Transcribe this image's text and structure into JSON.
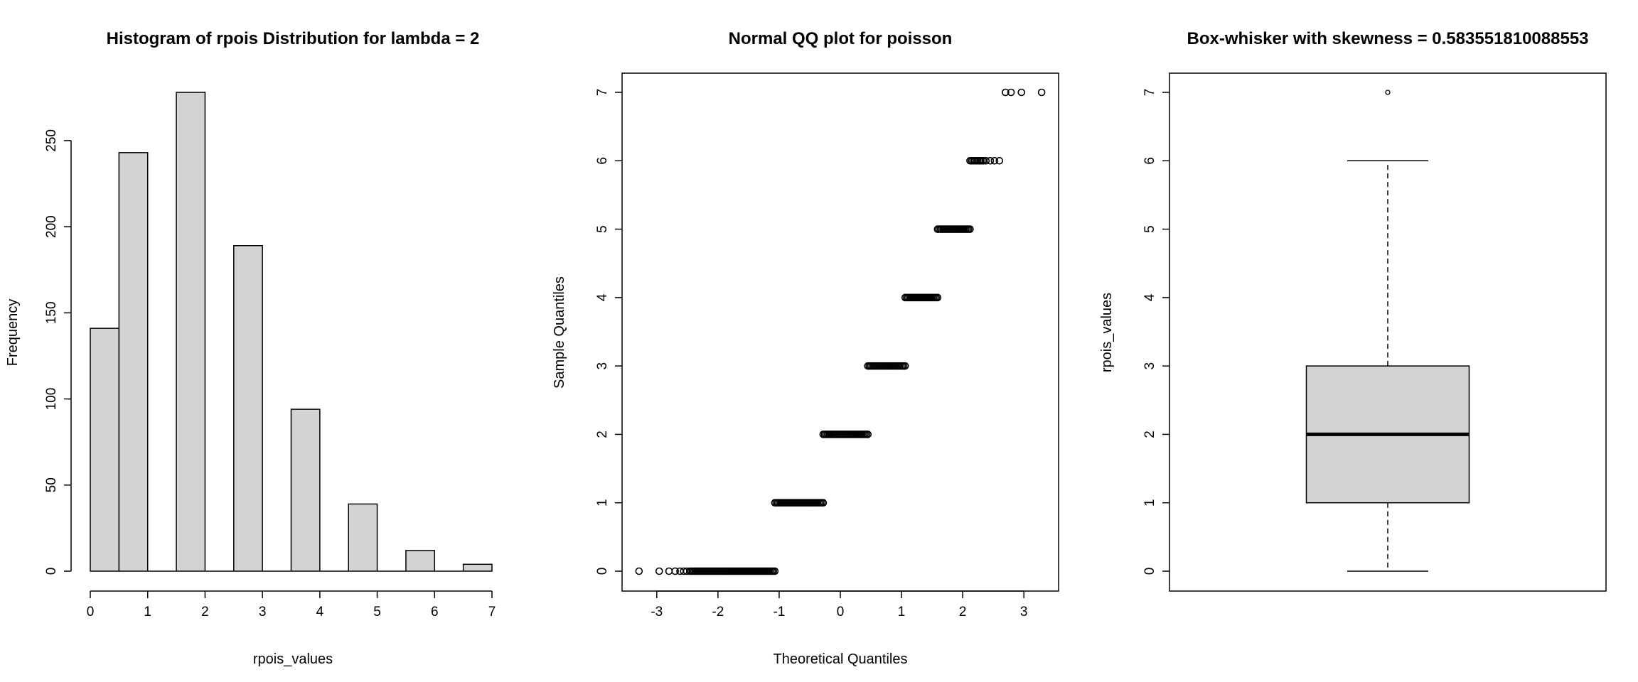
{
  "chart_data": [
    {
      "type": "bar",
      "subtype": "histogram",
      "title": "Histogram of rpois Distribution for lambda = 2",
      "xlabel": "rpois_values",
      "ylabel": "Frequency",
      "bins": [
        {
          "from": 0.0,
          "to": 0.5,
          "count": 141
        },
        {
          "from": 0.5,
          "to": 1.0,
          "count": 243
        },
        {
          "from": 1.0,
          "to": 1.5,
          "count": 0
        },
        {
          "from": 1.5,
          "to": 2.0,
          "count": 278
        },
        {
          "from": 2.0,
          "to": 2.5,
          "count": 0
        },
        {
          "from": 2.5,
          "to": 3.0,
          "count": 189
        },
        {
          "from": 3.0,
          "to": 3.5,
          "count": 0
        },
        {
          "from": 3.5,
          "to": 4.0,
          "count": 94
        },
        {
          "from": 4.0,
          "to": 4.5,
          "count": 0
        },
        {
          "from": 4.5,
          "to": 5.0,
          "count": 39
        },
        {
          "from": 5.0,
          "to": 5.5,
          "count": 0
        },
        {
          "from": 5.5,
          "to": 6.0,
          "count": 12
        },
        {
          "from": 6.0,
          "to": 6.5,
          "count": 0
        },
        {
          "from": 6.5,
          "to": 7.0,
          "count": 4
        }
      ],
      "xlim": [
        0,
        7
      ],
      "ylim": [
        0,
        278
      ],
      "xticks": [
        0,
        1,
        2,
        3,
        4,
        5,
        6,
        7
      ],
      "yticks": [
        0,
        50,
        100,
        150,
        200,
        250
      ],
      "bar_color": "#d3d3d3"
    },
    {
      "type": "scatter",
      "subtype": "qq",
      "title": "Normal QQ plot for poisson",
      "xlabel": "Theoretical Quantiles",
      "ylabel": "Sample Quantiles",
      "xlim": [
        -3.3,
        3.3
      ],
      "ylim": [
        0,
        7
      ],
      "xticks": [
        -3,
        -2,
        -1,
        0,
        1,
        2,
        3
      ],
      "yticks": [
        0,
        1,
        2,
        3,
        4,
        5,
        6,
        7
      ],
      "groups": [
        {
          "value": 0,
          "x_from": -3.29,
          "x_to": -1.07,
          "isolated_x": [
            -3.29,
            -2.96,
            -2.8,
            -2.7,
            -2.62,
            -2.56,
            -2.51
          ]
        },
        {
          "value": 1,
          "x_from": -1.07,
          "x_to": -0.28,
          "isolated_x": []
        },
        {
          "value": 2,
          "x_from": -0.28,
          "x_to": 0.45,
          "isolated_x": []
        },
        {
          "value": 3,
          "x_from": 0.45,
          "x_to": 1.06,
          "isolated_x": []
        },
        {
          "value": 4,
          "x_from": 1.06,
          "x_to": 1.59,
          "isolated_x": []
        },
        {
          "value": 5,
          "x_from": 1.59,
          "x_to": 2.12,
          "isolated_x": []
        },
        {
          "value": 6,
          "x_from": 2.12,
          "x_to": 2.6,
          "isolated_x": [
            2.38,
            2.45,
            2.52,
            2.6
          ]
        },
        {
          "value": 7,
          "x_from": 2.7,
          "x_to": 3.29,
          "isolated_x": [
            2.7,
            2.79,
            2.96,
            3.29
          ]
        }
      ]
    },
    {
      "type": "box",
      "title": "Box-whisker with skewness = 0.583551810088553",
      "ylabel": "rpois_values",
      "ylim": [
        0,
        7
      ],
      "yticks": [
        0,
        1,
        2,
        3,
        4,
        5,
        6,
        7
      ],
      "min": 0,
      "q1": 1,
      "median": 2,
      "q3": 3,
      "max": 6,
      "outliers": [
        7
      ],
      "box_color": "#d3d3d3"
    }
  ]
}
